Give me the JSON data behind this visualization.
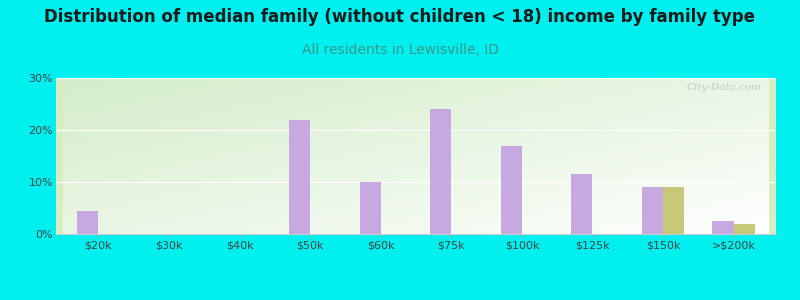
{
  "title": "Distribution of median family (without children < 18) income by family type",
  "subtitle": "All residents in Lewisville, ID",
  "background_color": "#00EFEF",
  "categories": [
    "$20k",
    "$30k",
    "$40k",
    "$50k",
    "$60k",
    "$75k",
    "$100k",
    "$125k",
    "$150k",
    ">$200k"
  ],
  "married_couple": [
    4.5,
    0,
    0,
    22,
    10,
    24,
    17,
    11.5,
    9,
    2.5
  ],
  "female_no_husband": [
    0,
    0,
    0,
    0,
    0,
    0,
    0,
    0,
    9,
    2
  ],
  "married_color": "#c8a8e0",
  "female_color": "#c8c87a",
  "bar_width": 0.3,
  "ylim": [
    0,
    30
  ],
  "yticks": [
    0,
    10,
    20,
    30
  ],
  "watermark": "City-Data.com",
  "title_fontsize": 12,
  "subtitle_fontsize": 10,
  "subtitle_color": "#3a9a8a",
  "tick_label_color": "#444444",
  "tick_label_fontsize": 8
}
